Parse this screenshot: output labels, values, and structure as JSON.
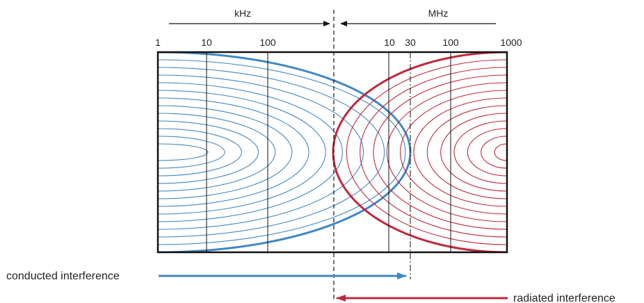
{
  "bands": {
    "left": "kHz",
    "right": "MHz"
  },
  "ticks": [
    {
      "label": "1",
      "line": false
    },
    {
      "label": "10",
      "line": true
    },
    {
      "label": "100",
      "line": true
    },
    {
      "label": "10",
      "line": true
    },
    {
      "label": "30",
      "line": true,
      "dashdot": true
    },
    {
      "label": "100",
      "line": true
    },
    {
      "label": "1000",
      "line": false
    }
  ],
  "legend": {
    "conducted": "conducted interference",
    "radiated": "radiated interference"
  },
  "colors": {
    "conducted": "#3f88c5",
    "radiated": "#c0283c",
    "ink": "#111111"
  }
}
